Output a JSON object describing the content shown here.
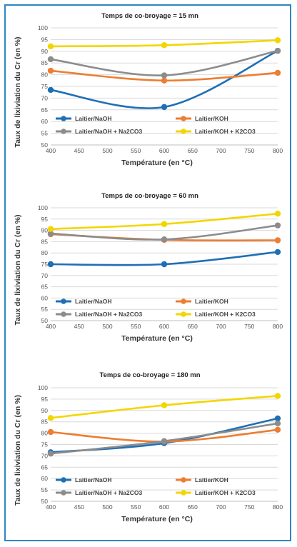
{
  "chart_data": [
    {
      "type": "line",
      "title": "Temps de co-broyage = 15 mn",
      "xlabel": "Température (en °C)",
      "ylabel": "Taux de lixiviation du Cr (en %)",
      "xlim": [
        400,
        800
      ],
      "ylim": [
        50,
        100
      ],
      "x_ticks": [
        "400",
        "450",
        "500",
        "550",
        "600",
        "650",
        "700",
        "750",
        "800"
      ],
      "y_ticks": [
        "50",
        "55",
        "60",
        "65",
        "70",
        "75",
        "80",
        "85",
        "90",
        "95",
        "100"
      ],
      "x": [
        400,
        600,
        800
      ],
      "series": [
        {
          "name": "Laitier/NaOH",
          "color": "#1f6fb5",
          "values": [
            73.5,
            66.2,
            90.2
          ]
        },
        {
          "name": "Laitier/KOH",
          "color": "#ed7d31",
          "values": [
            81.7,
            77.5,
            80.8
          ]
        },
        {
          "name": "Laitier/NaOH + Na2CO3",
          "color": "#8c8c8c",
          "values": [
            86.6,
            79.7,
            90.2
          ]
        },
        {
          "name": "Laitier/KOH + K2CO3",
          "color": "#f2d600",
          "values": [
            92.1,
            92.6,
            94.7
          ]
        }
      ]
    },
    {
      "type": "line",
      "title": "Temps de co-broyage = 60 mn",
      "xlabel": "Température (en °C)",
      "ylabel": "Taux de lixiviation du Cr (en %)",
      "xlim": [
        400,
        800
      ],
      "ylim": [
        50,
        100
      ],
      "x_ticks": [
        "400",
        "450",
        "500",
        "550",
        "600",
        "650",
        "700",
        "750",
        "800"
      ],
      "y_ticks": [
        "50",
        "55",
        "60",
        "65",
        "70",
        "75",
        "80",
        "85",
        "90",
        "95",
        "100"
      ],
      "x": [
        400,
        600,
        800
      ],
      "series": [
        {
          "name": "Laitier/NaOH",
          "color": "#1f6fb5",
          "values": [
            75.0,
            75.0,
            80.4
          ]
        },
        {
          "name": "Laitier/KOH",
          "color": "#ed7d31",
          "values": [
            88.3,
            85.8,
            85.6
          ]
        },
        {
          "name": "Laitier/NaOH + Na2CO3",
          "color": "#8c8c8c",
          "values": [
            88.6,
            86.0,
            92.2
          ]
        },
        {
          "name": "Laitier/KOH + K2CO3",
          "color": "#f2d600",
          "values": [
            90.6,
            92.8,
            97.4
          ]
        }
      ]
    },
    {
      "type": "line",
      "title": "Temps de co-broyage = 180 mn",
      "xlabel": "Température (en °C)",
      "ylabel": "Taux de lixiviation du Cr (en %)",
      "xlim": [
        400,
        800
      ],
      "ylim": [
        50,
        100
      ],
      "x_ticks": [
        "400",
        "450",
        "500",
        "550",
        "600",
        "650",
        "700",
        "750",
        "800"
      ],
      "y_ticks": [
        "50",
        "55",
        "60",
        "65",
        "70",
        "75",
        "80",
        "85",
        "90",
        "95",
        "100"
      ],
      "x": [
        400,
        600,
        800
      ],
      "series": [
        {
          "name": "Laitier/NaOH",
          "color": "#1f6fb5",
          "values": [
            71.6,
            75.6,
            86.5
          ]
        },
        {
          "name": "Laitier/KOH",
          "color": "#ed7d31",
          "values": [
            80.5,
            76.3,
            81.5
          ]
        },
        {
          "name": "Laitier/NaOH + Na2CO3",
          "color": "#8c8c8c",
          "values": [
            71.0,
            76.5,
            84.3
          ]
        },
        {
          "name": "Laitier/KOH + K2CO3",
          "color": "#f2d600",
          "values": [
            86.7,
            92.3,
            96.4
          ]
        }
      ]
    }
  ]
}
